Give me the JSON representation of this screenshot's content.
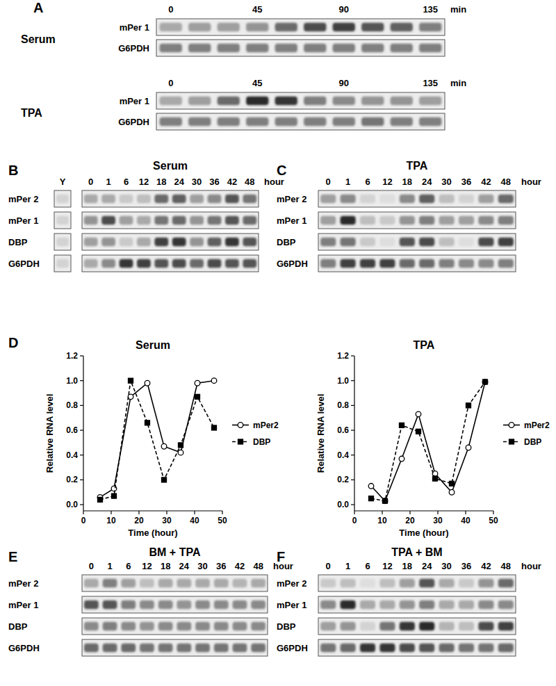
{
  "blots": [
    {
      "panel": "A",
      "side_title": "Serum",
      "lanes": [
        "0",
        null,
        null,
        "45",
        null,
        null,
        "90",
        null,
        null,
        "135"
      ],
      "unit": "min",
      "rows": [
        {
          "name": "mPer 1",
          "bands": [
            0.3,
            0.35,
            0.35,
            0.4,
            0.6,
            0.75,
            0.8,
            0.7,
            0.65,
            0.5
          ]
        },
        {
          "name": "G6PDH",
          "bands": [
            0.5,
            0.5,
            0.5,
            0.5,
            0.5,
            0.5,
            0.5,
            0.5,
            0.5,
            0.5
          ]
        }
      ]
    },
    {
      "side_title": "TPA",
      "lanes": [
        "0",
        null,
        null,
        "45",
        null,
        null,
        "90",
        null,
        null,
        "135"
      ],
      "unit": "min",
      "rows": [
        {
          "name": "mPer 1",
          "bands": [
            0.3,
            0.35,
            0.6,
            0.9,
            0.85,
            0.5,
            0.45,
            0.4,
            0.4,
            0.35
          ]
        },
        {
          "name": "G6PDH",
          "bands": [
            0.5,
            0.5,
            0.5,
            0.5,
            0.5,
            0.5,
            0.5,
            0.55,
            0.5,
            0.5
          ]
        }
      ]
    },
    {
      "panel": "B",
      "title": "Serum",
      "extra_lane": "Y",
      "lanes": [
        "0",
        "1",
        "6",
        "12",
        "18",
        "24",
        "30",
        "36",
        "42",
        "48"
      ],
      "unit": "hour",
      "rows": [
        {
          "name": "mPer 2",
          "extra_band": 0.1,
          "bands": [
            0.3,
            0.3,
            0.15,
            0.2,
            0.6,
            0.65,
            0.35,
            0.45,
            0.7,
            0.55
          ]
        },
        {
          "name": "mPer 1",
          "extra_band": 0.1,
          "bands": [
            0.4,
            0.75,
            0.35,
            0.3,
            0.55,
            0.6,
            0.4,
            0.55,
            0.7,
            0.6
          ]
        },
        {
          "name": "DBP",
          "extra_band": 0.1,
          "bands": [
            0.35,
            0.4,
            0.15,
            0.3,
            0.8,
            0.85,
            0.4,
            0.65,
            0.85,
            0.7
          ]
        },
        {
          "name": "G6PDH",
          "extra_band": 0.1,
          "bands": [
            0.3,
            0.45,
            0.85,
            0.8,
            0.7,
            0.75,
            0.6,
            0.75,
            0.7,
            0.7
          ]
        }
      ]
    },
    {
      "panel": "C",
      "title": "TPA",
      "lanes": [
        "0",
        "1",
        "6",
        "12",
        "18",
        "24",
        "30",
        "36",
        "42",
        "48"
      ],
      "unit": "hour",
      "rows": [
        {
          "name": "mPer 2",
          "bands": [
            0.35,
            0.45,
            0.1,
            0.05,
            0.45,
            0.65,
            0.2,
            0.1,
            0.35,
            0.6
          ]
        },
        {
          "name": "mPer 1",
          "bands": [
            0.35,
            0.9,
            0.2,
            0.15,
            0.4,
            0.5,
            0.35,
            0.35,
            0.45,
            0.5
          ]
        },
        {
          "name": "DBP",
          "bands": [
            0.5,
            0.55,
            0.15,
            0.05,
            0.7,
            0.75,
            0.2,
            0.05,
            0.75,
            0.8
          ]
        },
        {
          "name": "G6PDH",
          "bands": [
            0.5,
            0.8,
            0.8,
            0.8,
            0.6,
            0.6,
            0.5,
            0.45,
            0.45,
            0.5
          ]
        }
      ]
    },
    {
      "panel": "E",
      "title": "BM + TPA",
      "lanes": [
        "0",
        "1",
        "6",
        "12",
        "18",
        "24",
        "30",
        "36",
        "42",
        "48"
      ],
      "unit": "hour",
      "rows": [
        {
          "name": "mPer 2",
          "bands": [
            0.3,
            0.5,
            0.35,
            0.2,
            0.3,
            0.3,
            0.3,
            0.3,
            0.25,
            0.3
          ]
        },
        {
          "name": "mPer 1",
          "bands": [
            0.7,
            0.7,
            0.5,
            0.45,
            0.45,
            0.4,
            0.45,
            0.45,
            0.45,
            0.45
          ]
        },
        {
          "name": "DBP",
          "bands": [
            0.45,
            0.5,
            0.45,
            0.4,
            0.45,
            0.45,
            0.45,
            0.45,
            0.45,
            0.45
          ]
        },
        {
          "name": "G6PDH",
          "bands": [
            0.6,
            0.6,
            0.6,
            0.55,
            0.55,
            0.55,
            0.55,
            0.55,
            0.55,
            0.55
          ]
        }
      ]
    },
    {
      "panel": "F",
      "title": "TPA + BM",
      "lanes": [
        "0",
        "1",
        "6",
        "12",
        "18",
        "24",
        "30",
        "36",
        "42",
        "48"
      ],
      "unit": "hour",
      "rows": [
        {
          "name": "mPer 2",
          "bands": [
            0.15,
            0.2,
            0.05,
            0.2,
            0.35,
            0.7,
            0.3,
            0.15,
            0.4,
            0.6
          ]
        },
        {
          "name": "mPer 1",
          "bands": [
            0.45,
            0.9,
            0.3,
            0.3,
            0.4,
            0.5,
            0.3,
            0.3,
            0.45,
            0.45
          ]
        },
        {
          "name": "DBP",
          "bands": [
            0.35,
            0.4,
            0.1,
            0.55,
            0.85,
            0.9,
            0.25,
            0.2,
            0.75,
            0.8
          ]
        },
        {
          "name": "G6PDH",
          "bands": [
            0.55,
            0.6,
            0.85,
            0.85,
            0.75,
            0.7,
            0.6,
            0.55,
            0.55,
            0.6
          ]
        }
      ]
    }
  ],
  "panel_d_label": "D",
  "chart_data": [
    {
      "type": "line",
      "title": "Serum",
      "x": [
        6,
        11,
        17,
        23,
        29,
        35,
        41,
        47
      ],
      "x_label": "Time (hour)",
      "y_label": "Relative RNA level",
      "xlim": [
        0,
        50
      ],
      "xticks": [
        0,
        10,
        20,
        30,
        40,
        50
      ],
      "ylim": [
        -0.05,
        1.2
      ],
      "yticks": [
        {
          "value": 0,
          "label": "0.0"
        },
        {
          "value": 0.2,
          "label": "0.2"
        },
        {
          "value": 0.4,
          "label": "0.4"
        },
        {
          "value": 0.6,
          "label": "0.6"
        },
        {
          "value": 0.8,
          "label": "0.8"
        },
        {
          "value": 1.0,
          "label": "1.0"
        },
        {
          "value": 1.2,
          "label": "1.2"
        }
      ],
      "legend": "right",
      "series": [
        {
          "name": "mPer2",
          "color": "#000000",
          "marker": "open-circle",
          "line_style": "solid",
          "values": [
            0.06,
            0.13,
            0.87,
            0.98,
            0.47,
            0.42,
            0.98,
            1.0
          ]
        },
        {
          "name": "DBP",
          "color": "#000000",
          "marker": "square",
          "line_style": "dashed",
          "values": [
            0.04,
            0.07,
            1.0,
            0.66,
            0.2,
            0.48,
            0.87,
            0.62
          ]
        }
      ]
    },
    {
      "type": "line",
      "title": "TPA",
      "x": [
        6,
        11,
        17,
        23,
        29,
        35,
        41,
        47
      ],
      "x_label": "Time (hour)",
      "y_label": "Relative RNA level",
      "xlim": [
        0,
        50
      ],
      "xticks": [
        0,
        10,
        20,
        30,
        40,
        50
      ],
      "ylim": [
        -0.05,
        1.2
      ],
      "yticks": [
        {
          "value": 0,
          "label": "0.0"
        },
        {
          "value": 0.2,
          "label": "0.2"
        },
        {
          "value": 0.4,
          "label": "0.4"
        },
        {
          "value": 0.6,
          "label": "0.6"
        },
        {
          "value": 0.8,
          "label": "0.8"
        },
        {
          "value": 1.0,
          "label": "1.0"
        },
        {
          "value": 1.2,
          "label": "1.2"
        }
      ],
      "legend": "right",
      "series": [
        {
          "name": "mPer2",
          "color": "#000000",
          "marker": "open-circle",
          "line_style": "solid",
          "values": [
            0.15,
            0.03,
            0.37,
            0.73,
            0.25,
            0.1,
            0.46,
            0.99
          ]
        },
        {
          "name": "DBP",
          "color": "#000000",
          "marker": "square",
          "line_style": "dashed",
          "values": [
            0.05,
            0.03,
            0.64,
            0.59,
            0.21,
            0.17,
            0.8,
            0.99
          ]
        }
      ]
    }
  ]
}
